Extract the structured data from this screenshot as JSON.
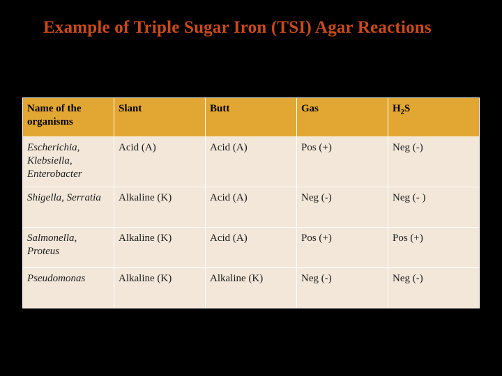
{
  "title": "Example of Triple Sugar Iron (TSI) Agar Reactions",
  "table": {
    "type": "table",
    "columns": [
      "Name of the organisms",
      "Slant",
      "Butt",
      "Gas",
      "H2S"
    ],
    "rows": [
      [
        "Escherichia, Klebsiella, Enterobacter",
        "Acid (A)",
        "Acid (A)",
        "Pos (+)",
        "Neg (-)"
      ],
      [
        "Shigella, Serratia",
        "Alkaline (K)",
        "Acid (A)",
        "Neg (-)",
        "Neg (- )"
      ],
      [
        "Salmonella, Proteus",
        "Alkaline (K)",
        "Acid (A)",
        "Pos (+)",
        "Pos (+)"
      ],
      [
        "Pseudomonas",
        "Alkaline (K)",
        "Alkaline (K)",
        "Neg (-)",
        "Neg (-)"
      ]
    ],
    "header_bg": "#e2a732",
    "body_bg": "#f3e7d9",
    "border_color": "#ffffff",
    "title_color": "#c94a1a",
    "slide_bg": "#000000",
    "title_fontsize": 25,
    "cell_fontsize": 15,
    "organism_column_italic": true,
    "column_widths_pct": [
      20,
      20,
      20,
      20,
      20
    ]
  }
}
